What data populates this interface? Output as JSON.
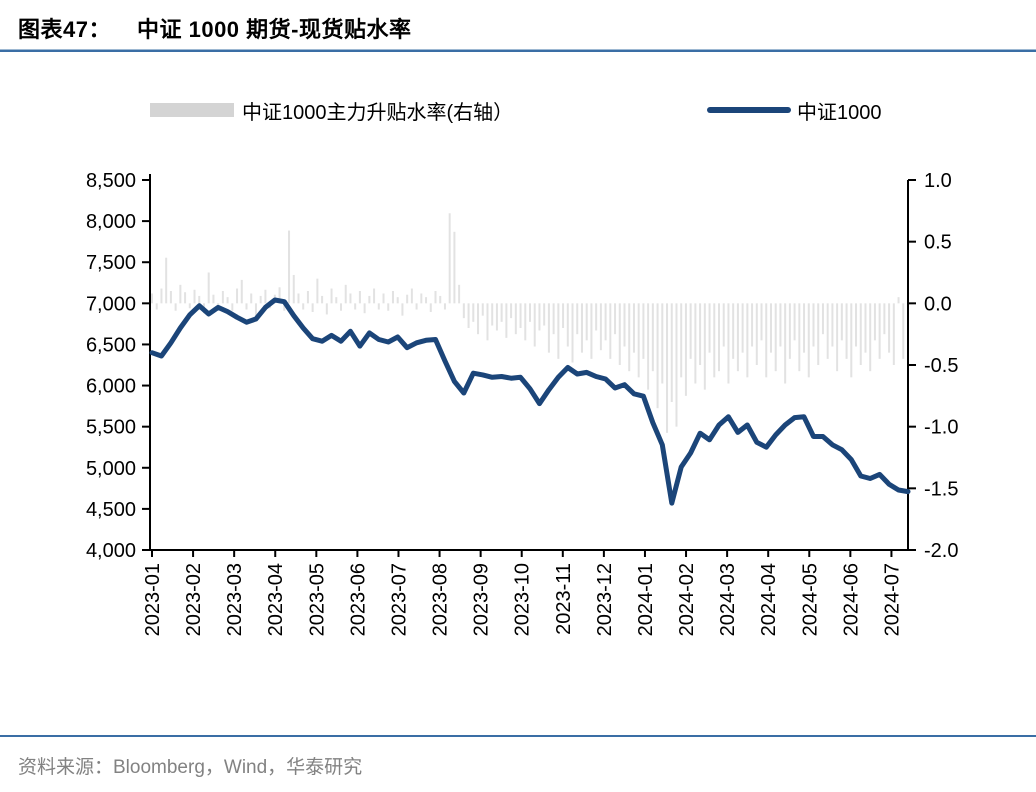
{
  "title": {
    "prefix": "图表47：",
    "text": "中证 1000 期货-现货贴水率"
  },
  "legend": {
    "bar_series_label": "中证1000主力升贴水率(右轴）",
    "line_series_label": "中证1000"
  },
  "source_text": "资料来源：Bloomberg，Wind，华泰研究",
  "colors": {
    "line": "#1b4579",
    "bar": "#e2e2e2",
    "legend_bar_swatch": "#d4d4d4",
    "rule_blue": "#3a6ea5",
    "axis_black": "#000000",
    "footer_gray": "#828282"
  },
  "chart_data": {
    "type": "combo",
    "title": "中证 1000 期货-现货贴水率",
    "x_axis": {
      "tick_labels": [
        "2023-01",
        "2023-02",
        "2023-03",
        "2023-04",
        "2023-05",
        "2023-06",
        "2023-07",
        "2023-08",
        "2023-09",
        "2023-10",
        "2023-11",
        "2023-12",
        "2024-01",
        "2024-02",
        "2024-03",
        "2024-04",
        "2024-05",
        "2024-06",
        "2024-07"
      ],
      "label_rotation_deg": -90,
      "grid": false
    },
    "left_axis": {
      "min": 4000,
      "max": 8500,
      "step": 500,
      "tick_labels": [
        "8,500",
        "8,000",
        "7,500",
        "7,000",
        "6,500",
        "6,000",
        "5,500",
        "5,000",
        "4,500",
        "4,000"
      ]
    },
    "right_axis": {
      "min": -2.0,
      "max": 1.0,
      "step": 0.5,
      "tick_labels": [
        "1.0",
        "0.5",
        "0.0",
        "-0.5",
        "-1.0",
        "-1.5",
        "-2.0"
      ]
    },
    "series": [
      {
        "name": "中证1000主力升贴水率(右轴）",
        "type": "bar",
        "axis": "right",
        "x_step_weeks": 0.5,
        "values": [
          0.08,
          -0.05,
          0.12,
          0.37,
          0.1,
          -0.06,
          0.15,
          0.09,
          -0.04,
          0.11,
          0.06,
          -0.08,
          0.25,
          0.07,
          -0.05,
          0.1,
          0.05,
          -0.06,
          0.12,
          0.19,
          -0.05,
          0.08,
          -0.1,
          0.06,
          0.11,
          -0.04,
          0.07,
          0.13,
          -0.06,
          0.59,
          0.23,
          0.08,
          -0.05,
          0.1,
          -0.07,
          0.2,
          0.06,
          -0.09,
          0.12,
          0.05,
          -0.06,
          0.15,
          0.08,
          -0.05,
          0.1,
          -0.08,
          0.06,
          0.12,
          -0.05,
          0.08,
          -0.06,
          0.1,
          0.05,
          -0.1,
          0.07,
          0.12,
          -0.05,
          0.08,
          0.05,
          -0.07,
          0.1,
          0.06,
          -0.05,
          0.73,
          0.58,
          0.15,
          -0.12,
          -0.2,
          -0.15,
          -0.25,
          -0.1,
          -0.3,
          -0.18,
          -0.22,
          -0.15,
          -0.28,
          -0.12,
          -0.25,
          -0.2,
          -0.3,
          -0.15,
          -0.35,
          -0.22,
          -0.18,
          -0.4,
          -0.25,
          -0.45,
          -0.2,
          -0.35,
          -0.48,
          -0.25,
          -0.4,
          -0.3,
          -0.45,
          -0.22,
          -0.38,
          -0.3,
          -0.45,
          -0.25,
          -0.5,
          -0.35,
          -0.55,
          -0.4,
          -0.6,
          -0.45,
          -0.7,
          -0.55,
          -0.85,
          -0.65,
          -1.05,
          -0.8,
          -1.0,
          -0.6,
          -0.75,
          -0.45,
          -0.65,
          -0.5,
          -0.7,
          -0.4,
          -0.6,
          -0.55,
          -0.35,
          -0.65,
          -0.45,
          -0.55,
          -0.4,
          -0.6,
          -0.35,
          -0.5,
          -0.3,
          -0.6,
          -0.4,
          -0.55,
          -0.35,
          -0.65,
          -0.45,
          -0.3,
          -0.55,
          -0.4,
          -0.6,
          -0.35,
          -0.5,
          -0.25,
          -0.45,
          -0.35,
          -0.55,
          -0.3,
          -0.45,
          -0.6,
          -0.35,
          -0.5,
          -0.4,
          -0.55,
          -0.3,
          -0.45,
          -0.25,
          -0.4,
          -0.5,
          0.05,
          -0.45,
          -0.55
        ]
      },
      {
        "name": "中证1000",
        "type": "line",
        "axis": "left",
        "x_step_weeks": 1,
        "values": [
          6400,
          6360,
          6520,
          6700,
          6860,
          6970,
          6870,
          6950,
          6900,
          6830,
          6770,
          6810,
          6950,
          7040,
          7020,
          6850,
          6700,
          6570,
          6540,
          6610,
          6540,
          6660,
          6480,
          6640,
          6560,
          6530,
          6590,
          6460,
          6520,
          6550,
          6560,
          6300,
          6050,
          5910,
          6150,
          6130,
          6100,
          6110,
          6090,
          6100,
          5960,
          5780,
          5950,
          6100,
          6220,
          6140,
          6160,
          6110,
          6080,
          5970,
          6010,
          5900,
          5870,
          5550,
          5280,
          4570,
          5010,
          5180,
          5420,
          5340,
          5520,
          5620,
          5430,
          5520,
          5310,
          5250,
          5400,
          5520,
          5610,
          5620,
          5380,
          5380,
          5280,
          5220,
          5100,
          4900,
          4870,
          4920,
          4800,
          4730,
          4710
        ]
      }
    ]
  }
}
